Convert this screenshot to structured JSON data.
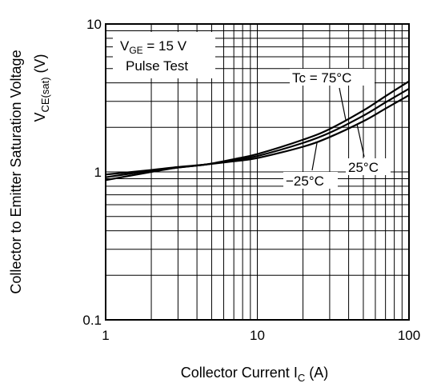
{
  "chart_data": {
    "type": "line",
    "x_scale": "log",
    "y_scale": "log",
    "xlim": [
      1,
      100
    ],
    "ylim": [
      0.1,
      10
    ],
    "grid": true,
    "xlabel_main": "Collector Current   I",
    "xlabel_sub": "C",
    "xlabel_unit": " (A)",
    "ylabel_line1": "Collector to Emitter Saturation Voltage",
    "ylabel_line2_main": "V",
    "ylabel_line2_sub": "CE(sat)",
    "ylabel_line2_unit": "  (V)",
    "x_ticks": [
      {
        "value": 1,
        "label": "1"
      },
      {
        "value": 10,
        "label": "10"
      },
      {
        "value": 100,
        "label": "100"
      }
    ],
    "y_ticks": [
      {
        "value": 10,
        "label": "10"
      },
      {
        "value": 1,
        "label": "1"
      },
      {
        "value": 0.1,
        "label": "0.1"
      }
    ],
    "conditions": {
      "vge_main": "V",
      "vge_sub": "GE",
      "vge_rest": " = 15 V",
      "pulse": "Pulse Test"
    },
    "series": [
      {
        "name": "Tc = 75°C",
        "x": [
          1,
          2,
          3,
          4.5,
          7,
          10,
          20,
          30,
          50,
          70,
          100
        ],
        "y": [
          0.88,
          1.0,
          1.07,
          1.12,
          1.22,
          1.32,
          1.65,
          1.95,
          2.6,
          3.25,
          4.1
        ]
      },
      {
        "name": "25°C",
        "x": [
          1,
          2,
          3,
          4.5,
          7,
          10,
          20,
          30,
          50,
          70,
          100
        ],
        "y": [
          0.92,
          1.02,
          1.07,
          1.12,
          1.2,
          1.28,
          1.57,
          1.84,
          2.4,
          2.95,
          3.65
        ]
      },
      {
        "name": "−25°C",
        "x": [
          1,
          2,
          3,
          4.5,
          7,
          10,
          20,
          30,
          50,
          70,
          100
        ],
        "y": [
          0.96,
          1.03,
          1.08,
          1.12,
          1.18,
          1.24,
          1.48,
          1.72,
          2.2,
          2.68,
          3.3
        ]
      }
    ]
  }
}
